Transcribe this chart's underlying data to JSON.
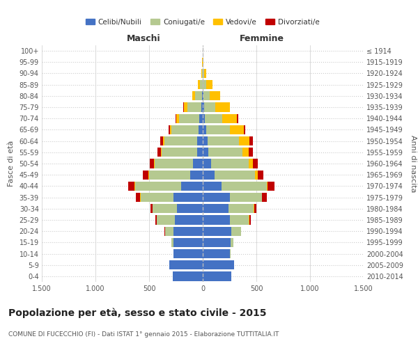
{
  "age_groups": [
    "0-4",
    "5-9",
    "10-14",
    "15-19",
    "20-24",
    "25-29",
    "30-34",
    "35-39",
    "40-44",
    "45-49",
    "50-54",
    "55-59",
    "60-64",
    "65-69",
    "70-74",
    "75-79",
    "80-84",
    "85-89",
    "90-94",
    "95-99",
    "100+"
  ],
  "birth_years": [
    "2010-2014",
    "2005-2009",
    "2000-2004",
    "1995-1999",
    "1990-1994",
    "1985-1989",
    "1980-1984",
    "1975-1979",
    "1970-1974",
    "1965-1969",
    "1960-1964",
    "1955-1959",
    "1950-1954",
    "1945-1949",
    "1940-1944",
    "1935-1939",
    "1930-1934",
    "1925-1929",
    "1920-1924",
    "1915-1919",
    "≤ 1914"
  ],
  "males": {
    "celibi": [
      280,
      310,
      270,
      270,
      270,
      260,
      240,
      270,
      200,
      120,
      90,
      55,
      50,
      40,
      30,
      15,
      5,
      0,
      0,
      0,
      0
    ],
    "coniugati": [
      0,
      0,
      5,
      20,
      80,
      170,
      230,
      310,
      430,
      380,
      360,
      330,
      310,
      250,
      190,
      130,
      65,
      25,
      8,
      2,
      0
    ],
    "vedovi": [
      0,
      0,
      0,
      0,
      0,
      0,
      0,
      5,
      5,
      5,
      5,
      5,
      10,
      15,
      25,
      30,
      30,
      20,
      5,
      2,
      0
    ],
    "divorziati": [
      0,
      0,
      0,
      0,
      5,
      10,
      20,
      40,
      60,
      55,
      40,
      30,
      25,
      15,
      10,
      5,
      0,
      0,
      0,
      0,
      0
    ]
  },
  "females": {
    "nubili": [
      265,
      295,
      255,
      260,
      265,
      255,
      240,
      250,
      175,
      110,
      80,
      50,
      45,
      30,
      20,
      10,
      5,
      0,
      0,
      0,
      0
    ],
    "coniugate": [
      0,
      0,
      5,
      25,
      90,
      175,
      235,
      300,
      420,
      380,
      350,
      320,
      290,
      220,
      160,
      110,
      60,
      30,
      10,
      2,
      0
    ],
    "vedove": [
      0,
      0,
      0,
      0,
      0,
      5,
      5,
      5,
      10,
      20,
      35,
      60,
      100,
      130,
      140,
      130,
      100,
      60,
      20,
      5,
      0
    ],
    "divorziate": [
      0,
      0,
      0,
      0,
      5,
      10,
      20,
      40,
      65,
      55,
      45,
      35,
      30,
      15,
      10,
      5,
      0,
      0,
      0,
      0,
      0
    ]
  },
  "colors": {
    "celibi": "#4472c4",
    "coniugati": "#b5c990",
    "vedovi": "#ffc000",
    "divorziati": "#c00000"
  },
  "xlim": 1500,
  "title": "Popolazione per età, sesso e stato civile - 2015",
  "subtitle": "COMUNE DI FUCECCHIO (FI) - Dati ISTAT 1° gennaio 2015 - Elaborazione TUTTITALIA.IT",
  "xlabel_maschi": "Maschi",
  "xlabel_femmine": "Femmine",
  "ylabel_left": "Fasce di età",
  "ylabel_right": "Anni di nascita",
  "bg_color": "#ffffff",
  "grid_color": "#cccccc"
}
